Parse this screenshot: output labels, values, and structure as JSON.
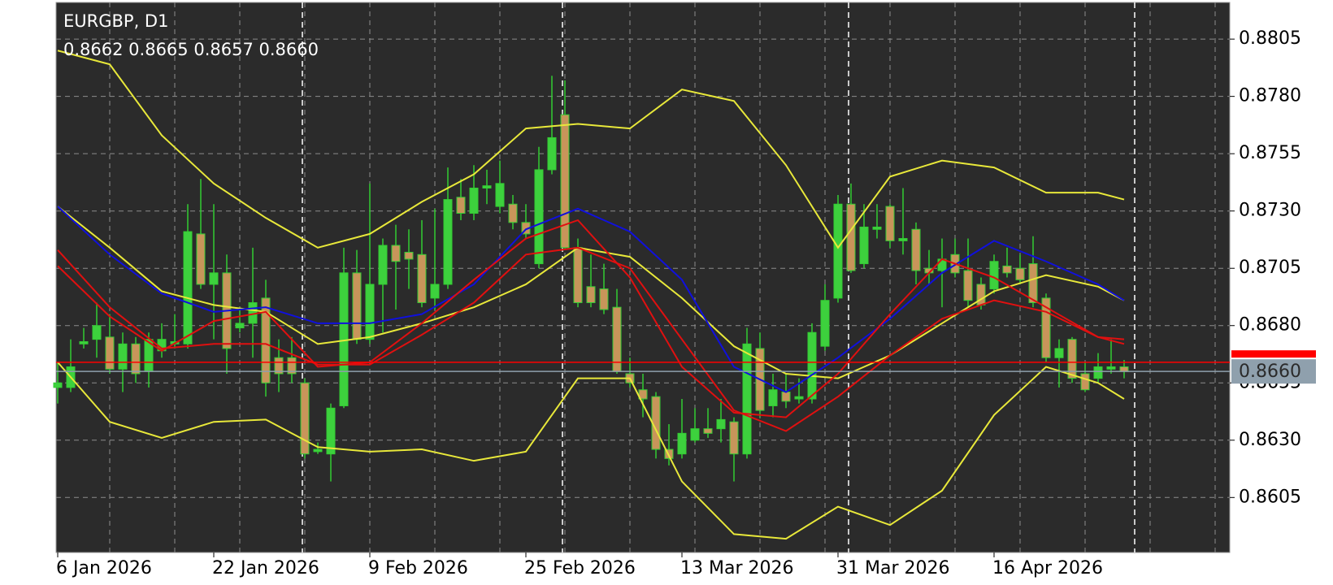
{
  "chart_data": {
    "type": "candlestick",
    "symbol": "EURGBP, D1",
    "ohlc_labels": [
      "0.8662",
      "0.8665",
      "0.8657",
      "0.8660"
    ],
    "categories": [
      "6 Jan 2026",
      null,
      null,
      null,
      null,
      null,
      null,
      null,
      null,
      null,
      null,
      null,
      "22 Jan 2026",
      null,
      null,
      null,
      null,
      null,
      null,
      null,
      null,
      null,
      null,
      null,
      "9 Feb 2026",
      null,
      null,
      null,
      null,
      null,
      null,
      null,
      null,
      null,
      null,
      null,
      "25 Feb 2026",
      null,
      null,
      null,
      null,
      null,
      null,
      null,
      null,
      null,
      null,
      null,
      "13 Mar 2026",
      null,
      null,
      null,
      null,
      null,
      null,
      null,
      null,
      null,
      null,
      null,
      "31 Mar 2026",
      null,
      null,
      null,
      null,
      null,
      null,
      null,
      null,
      null,
      null,
      null,
      "16 Apr 2026",
      null,
      null,
      null,
      null,
      null,
      null,
      null,
      null,
      null,
      null
    ],
    "open": [
      0.8653,
      0.8653,
      0.8672,
      0.8674,
      0.8675,
      0.8661,
      0.8672,
      0.866,
      0.8669,
      0.8672,
      0.8672,
      0.872,
      0.8698,
      0.8703,
      0.8679,
      0.8681,
      0.8692,
      0.8666,
      0.8666,
      0.8655,
      0.8625,
      0.8624,
      0.8645,
      0.8703,
      0.8674,
      0.8698,
      0.8715,
      0.8712,
      0.8711,
      0.8692,
      0.8698,
      0.8736,
      0.8729,
      0.874,
      0.8732,
      0.8733,
      0.8725,
      0.8707,
      0.8748,
      0.8772,
      0.8714,
      0.8697,
      0.8696,
      0.8688,
      0.8659,
      0.8652,
      0.8649,
      0.8626,
      0.8624,
      0.863,
      0.8635,
      0.8635,
      0.8638,
      0.8624,
      0.867,
      0.8645,
      0.8651,
      0.8648,
      0.8648,
      0.8671,
      0.8692,
      0.8733,
      0.8707,
      0.8722,
      0.8732,
      0.8717,
      0.8722,
      0.8705,
      0.8704,
      0.8711,
      0.8704,
      0.8698,
      0.8696,
      0.8706,
      0.8705,
      0.8707,
      0.8692,
      0.8666,
      0.8674,
      0.8659,
      0.8657,
      0.8661,
      0.8662
    ],
    "high": [
      0.8664,
      0.8674,
      0.8679,
      0.869,
      0.8685,
      0.8677,
      0.8675,
      0.8677,
      0.8681,
      0.8685,
      0.8733,
      0.8744,
      0.8733,
      0.8711,
      0.8688,
      0.8714,
      0.87,
      0.8674,
      0.8675,
      0.8657,
      0.8629,
      0.8646,
      0.8714,
      0.8713,
      0.8742,
      0.8718,
      0.8724,
      0.8722,
      0.8726,
      0.8731,
      0.8749,
      0.8744,
      0.875,
      0.8748,
      0.8752,
      0.8737,
      0.8733,
      0.8758,
      0.8789,
      0.8787,
      0.8718,
      0.8711,
      0.8707,
      0.8696,
      0.8666,
      0.8659,
      0.8651,
      0.8637,
      0.8648,
      0.8644,
      0.8644,
      0.8648,
      0.864,
      0.8679,
      0.8677,
      0.8659,
      0.8659,
      0.8657,
      0.8681,
      0.8698,
      0.8737,
      0.8742,
      0.8733,
      0.8733,
      0.8733,
      0.874,
      0.8725,
      0.8713,
      0.8718,
      0.8718,
      0.8718,
      0.8701,
      0.8711,
      0.8714,
      0.8711,
      0.8719,
      0.8694,
      0.8674,
      0.8675,
      0.8664,
      0.8668,
      0.8674,
      0.8665
    ],
    "low": [
      0.8646,
      0.8651,
      0.867,
      0.8666,
      0.8659,
      0.8651,
      0.8655,
      0.8653,
      0.8666,
      0.867,
      0.867,
      0.8696,
      0.8674,
      0.8659,
      0.8677,
      0.8666,
      0.8649,
      0.8651,
      0.8655,
      0.8622,
      0.8624,
      0.8612,
      0.8644,
      0.8672,
      0.8672,
      0.8677,
      0.8687,
      0.8696,
      0.8688,
      0.8687,
      0.8696,
      0.8726,
      0.8726,
      0.8733,
      0.8729,
      0.8722,
      0.8718,
      0.8705,
      0.8746,
      0.8713,
      0.8688,
      0.8688,
      0.8685,
      0.8659,
      0.8653,
      0.864,
      0.8622,
      0.8619,
      0.8622,
      0.8629,
      0.8631,
      0.8629,
      0.8612,
      0.8622,
      0.864,
      0.864,
      0.8644,
      0.8646,
      0.8646,
      0.8669,
      0.869,
      0.8703,
      0.8705,
      0.8718,
      0.8714,
      0.8711,
      0.8698,
      0.8698,
      0.8688,
      0.8701,
      0.8688,
      0.8687,
      0.8694,
      0.8701,
      0.8698,
      0.8688,
      0.8664,
      0.8653,
      0.8655,
      0.8651,
      0.8655,
      0.8659,
      0.8657
    ],
    "close": [
      0.8655,
      0.8662,
      0.8673,
      0.868,
      0.8661,
      0.8672,
      0.8659,
      0.8674,
      0.8674,
      0.8673,
      0.8721,
      0.8698,
      0.8703,
      0.867,
      0.8681,
      0.869,
      0.8655,
      0.8659,
      0.8659,
      0.8624,
      0.8626,
      0.8644,
      0.8703,
      0.8674,
      0.8698,
      0.8715,
      0.8708,
      0.8709,
      0.869,
      0.8698,
      0.8735,
      0.8729,
      0.874,
      0.8741,
      0.8742,
      0.8725,
      0.872,
      0.8748,
      0.8762,
      0.8714,
      0.869,
      0.869,
      0.8687,
      0.866,
      0.8655,
      0.8648,
      0.8626,
      0.8622,
      0.8633,
      0.8635,
      0.8633,
      0.8639,
      0.8624,
      0.8672,
      0.8643,
      0.8652,
      0.8647,
      0.8649,
      0.8677,
      0.8691,
      0.8733,
      0.8704,
      0.8723,
      0.8723,
      0.8717,
      0.8718,
      0.8704,
      0.8703,
      0.8709,
      0.8703,
      0.8691,
      0.8689,
      0.8708,
      0.8703,
      0.87,
      0.869,
      0.8666,
      0.867,
      0.8657,
      0.8652,
      0.8662,
      0.8662,
      0.866
    ],
    "bull_color": "#3dd13d",
    "bear_color": "#c8955a",
    "wick_color": "#33cc33",
    "indicator_x": [
      0,
      4,
      8,
      12,
      16,
      20,
      24,
      28,
      32,
      36,
      40,
      44,
      48,
      52,
      56,
      60,
      64,
      68,
      72,
      76,
      80,
      82
    ],
    "indicators": [
      {
        "color": "#e8e83a",
        "values": [
          0.88,
          0.8794,
          0.8763,
          0.8742,
          0.8727,
          0.8714,
          0.872,
          0.8734,
          0.8746,
          0.8766,
          0.8768,
          0.8766,
          0.8783,
          0.8778,
          0.875,
          0.8714,
          0.8745,
          0.8752,
          0.8749,
          0.8738,
          0.8738,
          0.8735
        ]
      },
      {
        "color": "#e8e83a",
        "values": [
          0.8732,
          0.8714,
          0.8695,
          0.8689,
          0.8686,
          0.8672,
          0.8675,
          0.8681,
          0.8688,
          0.8698,
          0.8714,
          0.871,
          0.8692,
          0.8671,
          0.8659,
          0.8657,
          0.8667,
          0.8681,
          0.8695,
          0.8702,
          0.8697,
          0.8691
        ]
      },
      {
        "color": "#e8e83a",
        "values": [
          0.8664,
          0.8638,
          0.8631,
          0.8638,
          0.8639,
          0.8627,
          0.8625,
          0.8626,
          0.8621,
          0.8625,
          0.8657,
          0.8657,
          0.8612,
          0.8589,
          0.8587,
          0.8601,
          0.8593,
          0.8608,
          0.8641,
          0.8662,
          0.8655,
          0.8648
        ]
      },
      {
        "color": "#1010dd",
        "values": [
          0.8732,
          0.8711,
          0.8694,
          0.8686,
          0.8688,
          0.8681,
          0.8681,
          0.8685,
          0.8698,
          0.8722,
          0.8731,
          0.8721,
          0.87,
          0.8662,
          0.8651,
          0.8666,
          0.8683,
          0.8703,
          0.8717,
          0.8708,
          0.8698,
          0.8691
        ]
      },
      {
        "color": "#e01010",
        "values": [
          0.8713,
          0.8688,
          0.867,
          0.8672,
          0.8672,
          0.8663,
          0.8663,
          0.8676,
          0.869,
          0.8711,
          0.8714,
          0.8705,
          0.8674,
          0.8643,
          0.8634,
          0.8649,
          0.8667,
          0.8683,
          0.8691,
          0.8686,
          0.8675,
          0.8674
        ]
      },
      {
        "color": "#e01010",
        "values": [
          0.8706,
          0.8684,
          0.8669,
          0.8682,
          0.8686,
          0.8662,
          0.8664,
          0.8681,
          0.87,
          0.8718,
          0.8726,
          0.8701,
          0.8662,
          0.8642,
          0.864,
          0.8659,
          0.8685,
          0.8709,
          0.8701,
          0.8688,
          0.8675,
          0.8672
        ]
      }
    ],
    "ask_line": 0.8664,
    "ask_color": "#ff0000",
    "bid": {
      "value": 0.866,
      "label": "0.8660"
    },
    "ylim": [
      0.8581,
      0.8821
    ],
    "yticks": [
      0.8605,
      {
        "value": 0.863,
        "label": "0.8630"
      },
      0.8655,
      {
        "value": 0.868,
        "label": "0.8680"
      },
      0.8705,
      {
        "value": 0.873,
        "label": "0.8730"
      },
      0.8755,
      {
        "value": 0.878,
        "label": "0.8780"
      },
      0.8805
    ],
    "grid": true
  }
}
